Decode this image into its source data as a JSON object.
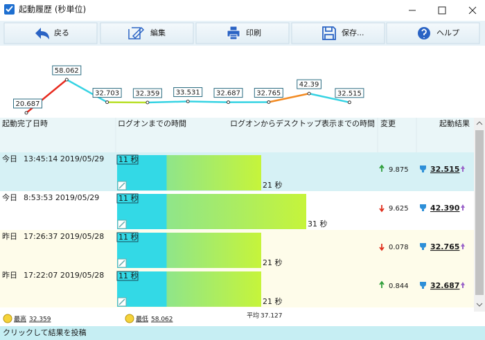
{
  "window": {
    "title": "起動履歴 (秒単位)"
  },
  "toolbar": [
    "戻る",
    "編集",
    "印刷",
    "保存...",
    "ヘルプ"
  ],
  "sparkline": {
    "type": "line",
    "values": [
      20.687,
      58.062,
      32.703,
      32.359,
      33.531,
      32.687,
      32.765,
      42.39,
      32.515
    ],
    "segment_colors": [
      "#e82a1e",
      "#36d3e3",
      "#b9e02a",
      "#36d3e3",
      "#36d3e3",
      "#36d3e3",
      "#f28a22",
      "#36d3e3"
    ]
  },
  "columns": [
    "起動完了日時",
    "ログオンまでの時間",
    "ログオンからデスクトップ表示までの時間",
    "変更",
    "起動結果"
  ],
  "rows": [
    {
      "day": "今日",
      "time": "13:45:14 2019/05/29",
      "logon": 11,
      "logon_label": "11 秒",
      "desktop": 21,
      "desktop_label": "21 秒",
      "change": "9.875",
      "direction": "up",
      "result": "32.515"
    },
    {
      "day": "今日",
      "time": "8:53:53 2019/05/29",
      "logon": 11,
      "logon_label": "11 秒",
      "desktop": 31,
      "desktop_label": "31 秒",
      "change": "9.625",
      "direction": "down",
      "result": "42.390"
    },
    {
      "day": "昨日",
      "time": "17:26:37 2019/05/28",
      "logon": 11,
      "logon_label": "11 秒",
      "desktop": 21,
      "desktop_label": "21 秒",
      "change": "0.078",
      "direction": "down",
      "result": "32.765"
    },
    {
      "day": "昨日",
      "time": "17:22:07 2019/05/28",
      "logon": 11,
      "logon_label": "11 秒",
      "desktop": 21,
      "desktop_label": "21 秒",
      "change": "0.844",
      "direction": "up",
      "result": "32.687"
    }
  ],
  "stats": {
    "best_label": "最高",
    "best": "32.359",
    "worst_label": "最低",
    "worst": "58.062",
    "average_label": "平均",
    "average": "37.127"
  },
  "status": "クリックして結果を投稿"
}
